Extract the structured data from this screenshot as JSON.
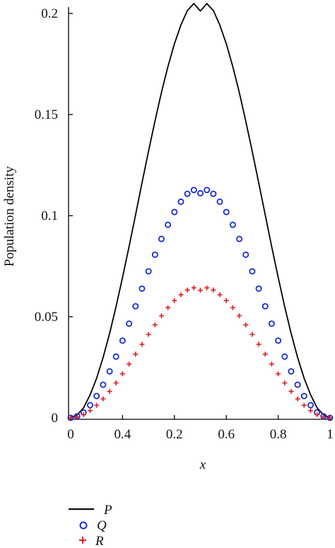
{
  "chart_data": {
    "type": "line",
    "xlabel": "x",
    "ylabel": "Population density",
    "x_tick_labels": [
      "0",
      "0.4",
      "0.2",
      "0.6",
      "0.8",
      "1"
    ],
    "y_tick_labels": [
      "0",
      "0.05",
      "0.1",
      "0.15",
      "0.2"
    ],
    "xlim": [
      0,
      1
    ],
    "ylim": [
      0,
      0.2
    ],
    "grid": false,
    "legend_position": "bottom-left",
    "colors": {
      "P": "#000000",
      "Q": "#1a2bd6",
      "R": "#e11d1d"
    },
    "series": [
      {
        "name": "P",
        "style": "solid line",
        "x": [
          0,
          0.025,
          0.05,
          0.075,
          0.1,
          0.125,
          0.15,
          0.175,
          0.2,
          0.225,
          0.25,
          0.275,
          0.3,
          0.325,
          0.35,
          0.375,
          0.4,
          0.425,
          0.45,
          0.475,
          0.5,
          0.525,
          0.55,
          0.575,
          0.6,
          0.625,
          0.65,
          0.675,
          0.7,
          0.725,
          0.75,
          0.775,
          0.8,
          0.825,
          0.85,
          0.875,
          0.9,
          0.925,
          0.95,
          0.975,
          1
        ],
        "y": [
          0,
          0.0015,
          0.005,
          0.0114,
          0.0196,
          0.0299,
          0.0418,
          0.055,
          0.0695,
          0.0847,
          0.1004,
          0.1162,
          0.1318,
          0.1468,
          0.1609,
          0.1737,
          0.185,
          0.1943,
          0.2014,
          0.2049,
          0.2012,
          0.2049,
          0.2014,
          0.1943,
          0.185,
          0.1737,
          0.1609,
          0.1468,
          0.1318,
          0.1162,
          0.1004,
          0.0847,
          0.0695,
          0.055,
          0.0418,
          0.0299,
          0.0196,
          0.0114,
          0.005,
          0.0015,
          0
        ]
      },
      {
        "name": "Q",
        "style": "open circles",
        "x": [
          0,
          0.025,
          0.05,
          0.075,
          0.1,
          0.125,
          0.15,
          0.175,
          0.2,
          0.225,
          0.25,
          0.275,
          0.3,
          0.325,
          0.35,
          0.375,
          0.4,
          0.425,
          0.45,
          0.475,
          0.5,
          0.525,
          0.55,
          0.575,
          0.6,
          0.625,
          0.65,
          0.675,
          0.7,
          0.725,
          0.75,
          0.775,
          0.8,
          0.825,
          0.85,
          0.875,
          0.9,
          0.925,
          0.95,
          0.975,
          1
        ],
        "y": [
          0,
          0.0008,
          0.0027,
          0.0063,
          0.0108,
          0.0164,
          0.023,
          0.0303,
          0.0382,
          0.0466,
          0.0552,
          0.0639,
          0.0725,
          0.0807,
          0.0885,
          0.0955,
          0.1018,
          0.1069,
          0.1108,
          0.1127,
          0.1111,
          0.1127,
          0.1108,
          0.1069,
          0.1018,
          0.0955,
          0.0885,
          0.0807,
          0.0725,
          0.0639,
          0.0552,
          0.0466,
          0.0382,
          0.0303,
          0.023,
          0.0164,
          0.0108,
          0.0063,
          0.0027,
          0.0008,
          0
        ]
      },
      {
        "name": "R",
        "style": "plus markers",
        "x": [
          0,
          0.025,
          0.05,
          0.075,
          0.1,
          0.125,
          0.15,
          0.175,
          0.2,
          0.225,
          0.25,
          0.275,
          0.3,
          0.325,
          0.35,
          0.375,
          0.4,
          0.425,
          0.45,
          0.475,
          0.5,
          0.525,
          0.55,
          0.575,
          0.6,
          0.625,
          0.65,
          0.675,
          0.7,
          0.725,
          0.75,
          0.775,
          0.8,
          0.825,
          0.85,
          0.875,
          0.9,
          0.925,
          0.95,
          0.975,
          1
        ],
        "y": [
          0,
          0.0005,
          0.0016,
          0.0036,
          0.0062,
          0.0094,
          0.0131,
          0.0173,
          0.0218,
          0.0266,
          0.0315,
          0.0364,
          0.0413,
          0.046,
          0.0505,
          0.0545,
          0.058,
          0.0609,
          0.0632,
          0.0643,
          0.0631,
          0.0643,
          0.0632,
          0.0609,
          0.058,
          0.0545,
          0.0505,
          0.046,
          0.0413,
          0.0364,
          0.0315,
          0.0266,
          0.0218,
          0.0173,
          0.0131,
          0.0094,
          0.0062,
          0.0036,
          0.0016,
          0.0005,
          0
        ]
      }
    ]
  }
}
